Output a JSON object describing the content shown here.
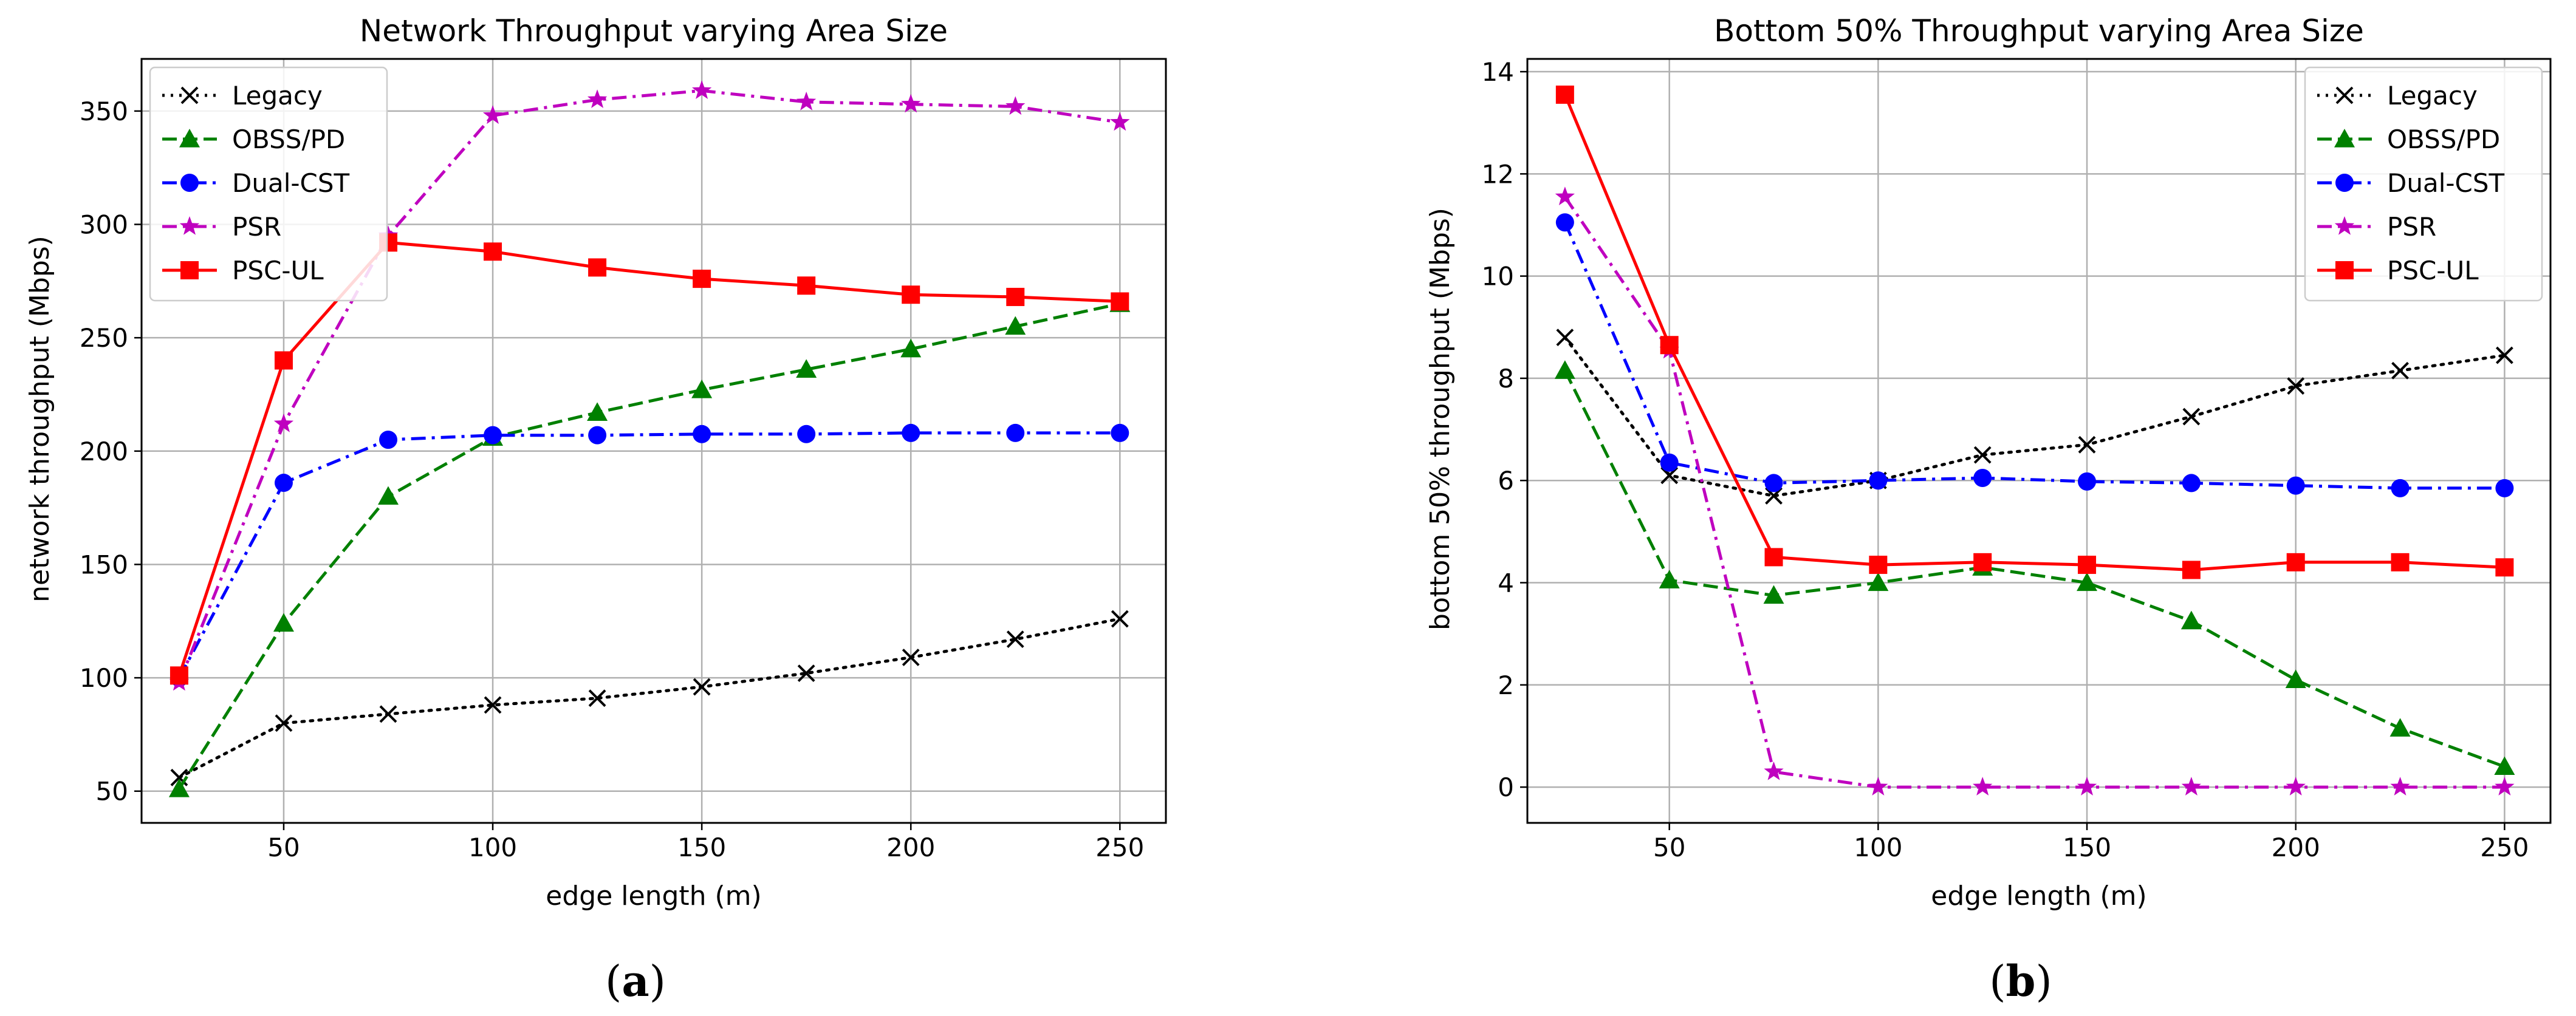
{
  "chart_data": [
    {
      "type": "line",
      "title": "Network Throughput varying Area Size",
      "xlabel": "edge length (m)",
      "ylabel": "network throughput (Mbps)",
      "xlim": [
        16,
        261
      ],
      "ylim": [
        36,
        373
      ],
      "x_ticks": [
        50,
        100,
        150,
        200,
        250
      ],
      "y_ticks": [
        50,
        100,
        150,
        200,
        250,
        300,
        350
      ],
      "grid": true,
      "legend_position": "upper-left",
      "x": [
        25,
        50,
        75,
        100,
        125,
        150,
        175,
        200,
        225,
        250
      ],
      "series": [
        {
          "name": "Legacy",
          "color": "#000000",
          "dash": "dotted",
          "marker": "x",
          "values": [
            56,
            80,
            84,
            88,
            91,
            96,
            102,
            109,
            117,
            126
          ]
        },
        {
          "name": "OBSS/PD",
          "color": "#008000",
          "dash": "dashed",
          "marker": "triangle",
          "values": [
            51,
            124,
            180,
            206,
            217,
            227,
            236,
            245,
            255,
            265
          ]
        },
        {
          "name": "Dual-CST",
          "color": "#0000ff",
          "dash": "dashdot",
          "marker": "circle",
          "values": [
            100,
            186,
            205,
            207,
            207,
            207.5,
            207.5,
            208,
            208,
            208
          ]
        },
        {
          "name": "PSR",
          "color": "#bf00bf",
          "dash": "dashdot",
          "marker": "star",
          "values": [
            98,
            212,
            295,
            348,
            355,
            359,
            354,
            353,
            352,
            345
          ]
        },
        {
          "name": "PSC-UL",
          "color": "#ff0000",
          "dash": "solid",
          "marker": "square",
          "values": [
            101,
            240,
            292,
            288,
            281,
            276,
            273,
            269,
            268,
            266
          ]
        }
      ],
      "caption_letter": "a"
    },
    {
      "type": "line",
      "title": "Bottom 50% Throughput varying Area Size",
      "xlabel": "edge length (m)",
      "ylabel": "bottom 50% throughput (Mbps)",
      "xlim": [
        16,
        261
      ],
      "ylim": [
        -0.7,
        14.25
      ],
      "x_ticks": [
        50,
        100,
        150,
        200,
        250
      ],
      "y_ticks": [
        0,
        2,
        4,
        6,
        8,
        10,
        12,
        14
      ],
      "grid": true,
      "legend_position": "upper-right",
      "x": [
        25,
        50,
        75,
        100,
        125,
        150,
        175,
        200,
        225,
        250
      ],
      "series": [
        {
          "name": "Legacy",
          "color": "#000000",
          "dash": "dotted",
          "marker": "x",
          "values": [
            8.8,
            6.1,
            5.7,
            6.0,
            6.5,
            6.7,
            7.25,
            7.85,
            8.15,
            8.45
          ]
        },
        {
          "name": "OBSS/PD",
          "color": "#008000",
          "dash": "dashed",
          "marker": "triangle",
          "values": [
            8.15,
            4.05,
            3.75,
            4.0,
            4.3,
            4.0,
            3.25,
            2.1,
            1.15,
            0.4
          ]
        },
        {
          "name": "Dual-CST",
          "color": "#0000ff",
          "dash": "dashdot",
          "marker": "circle",
          "values": [
            11.05,
            6.35,
            5.95,
            6.0,
            6.05,
            5.98,
            5.95,
            5.9,
            5.85,
            5.85
          ]
        },
        {
          "name": "PSR",
          "color": "#bf00bf",
          "dash": "dashdot",
          "marker": "star",
          "values": [
            11.55,
            8.55,
            0.3,
            0.0,
            0.0,
            0.0,
            0.0,
            0.0,
            0.0,
            0.0
          ]
        },
        {
          "name": "PSC-UL",
          "color": "#ff0000",
          "dash": "solid",
          "marker": "square",
          "values": [
            13.55,
            8.65,
            4.5,
            4.35,
            4.4,
            4.35,
            4.25,
            4.4,
            4.4,
            4.3
          ]
        }
      ],
      "caption_letter": "b"
    }
  ]
}
